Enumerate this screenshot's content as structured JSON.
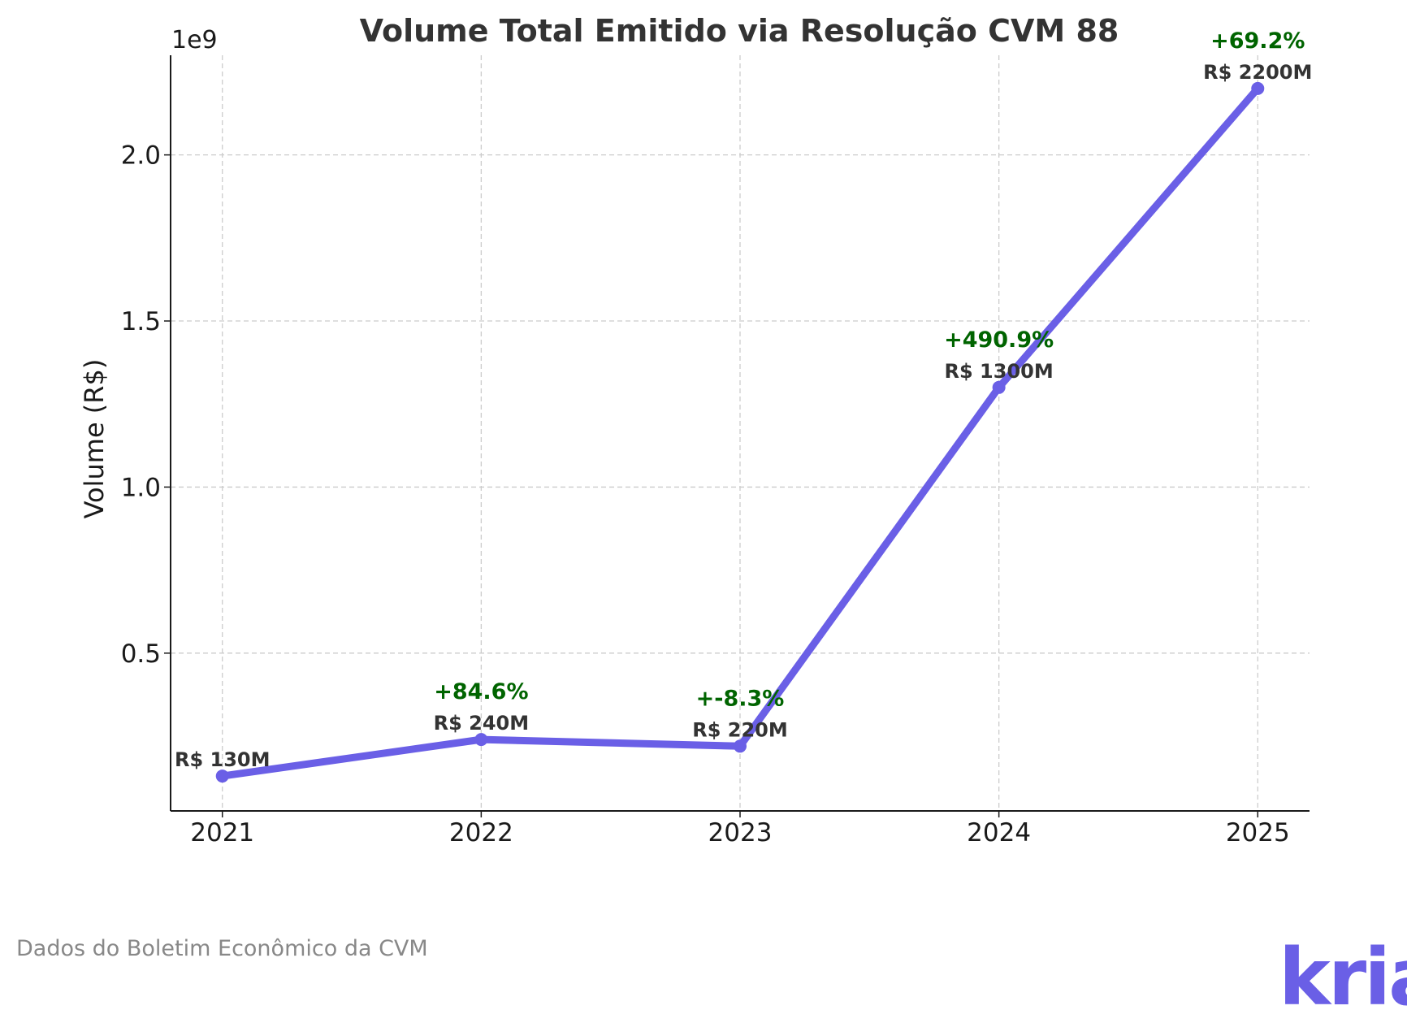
{
  "chart_data": {
    "type": "line",
    "title": "Volume Total Emitido via Resolução CVM 88",
    "xlabel": "",
    "ylabel": "Volume (R$)",
    "y_offset_label": "1e9",
    "x": [
      2021,
      2022,
      2023,
      2024,
      2025
    ],
    "x_tick_labels": [
      "2021",
      "2022",
      "2023",
      "2024",
      "2025"
    ],
    "values": [
      130000000,
      240000000,
      220000000,
      1300000000,
      2200000000
    ],
    "value_labels": [
      "R$ 130M",
      "R$ 240M",
      "R$ 220M",
      "R$ 1300M",
      "R$ 2200M"
    ],
    "growth_labels": [
      "",
      "+84.6%",
      "+-8.3%",
      "+490.9%",
      "+69.2%"
    ],
    "ylim": [
      0.025,
      2.3
    ],
    "y_unit": 1000000000,
    "y_ticks": [
      0.5,
      1.0,
      1.5,
      2.0
    ],
    "y_tick_labels": [
      "0.5",
      "1.0",
      "1.5",
      "2.0"
    ],
    "xlim": [
      2020.8,
      2025.2
    ],
    "grid": true,
    "line_color": "#6a5fe6",
    "growth_color": "#006400"
  },
  "footer": {
    "source": "Dados do Boletim Econômico da CVM",
    "logo_text": "kria",
    "logo_color": "#6a5fe6"
  }
}
